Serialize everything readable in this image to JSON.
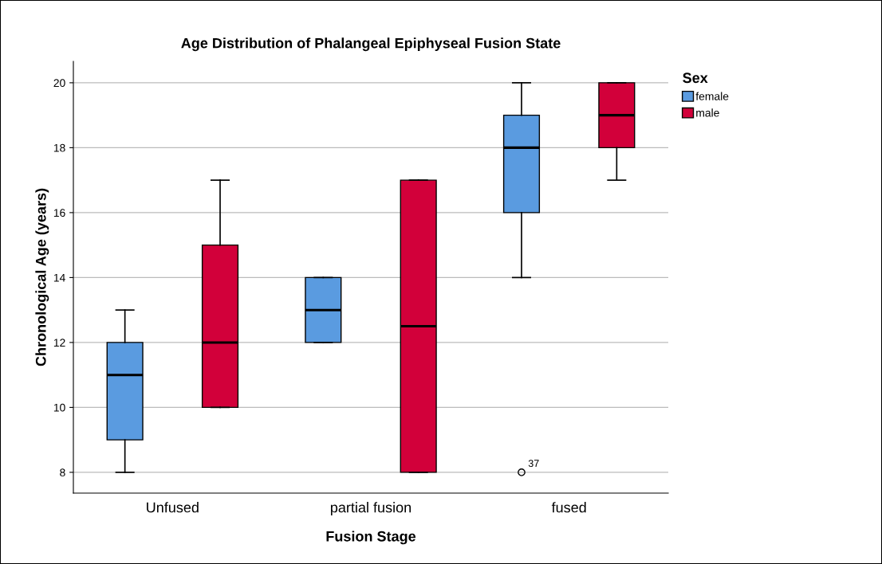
{
  "chart_data": {
    "type": "box",
    "title": "Age Distribution of Phalangeal Epiphyseal Fusion State",
    "xlabel": "Fusion Stage",
    "ylabel": "Chronological Age (years)",
    "legend_title": "Sex",
    "categories": [
      "Unfused",
      "partial fusion",
      "fused"
    ],
    "series": [
      {
        "name": "female",
        "color": "#5a9be0",
        "boxes": [
          {
            "low": 8,
            "q1": 9,
            "median": 11,
            "q3": 12,
            "high": 13
          },
          {
            "low": 12,
            "q1": 12,
            "median": 13,
            "q3": 14,
            "high": 14
          },
          {
            "low": 14,
            "q1": 16,
            "median": 18,
            "q3": 19,
            "high": 20,
            "outliers": [
              8
            ]
          }
        ]
      },
      {
        "name": "male",
        "color": "#d2003a",
        "boxes": [
          {
            "low": 10,
            "q1": 10,
            "median": 12,
            "q3": 15,
            "high": 17
          },
          {
            "low": 8,
            "q1": 8,
            "median": 12.5,
            "q3": 17,
            "high": 17
          },
          {
            "low": 17,
            "q1": 18,
            "median": 19,
            "q3": 20,
            "high": 20
          }
        ]
      }
    ],
    "ylim": [
      7.36,
      20.66
    ],
    "yticks": [
      8,
      10,
      12,
      14,
      16,
      18,
      20
    ],
    "grid": "y",
    "legend": "top right",
    "annotations": [
      "37"
    ]
  }
}
